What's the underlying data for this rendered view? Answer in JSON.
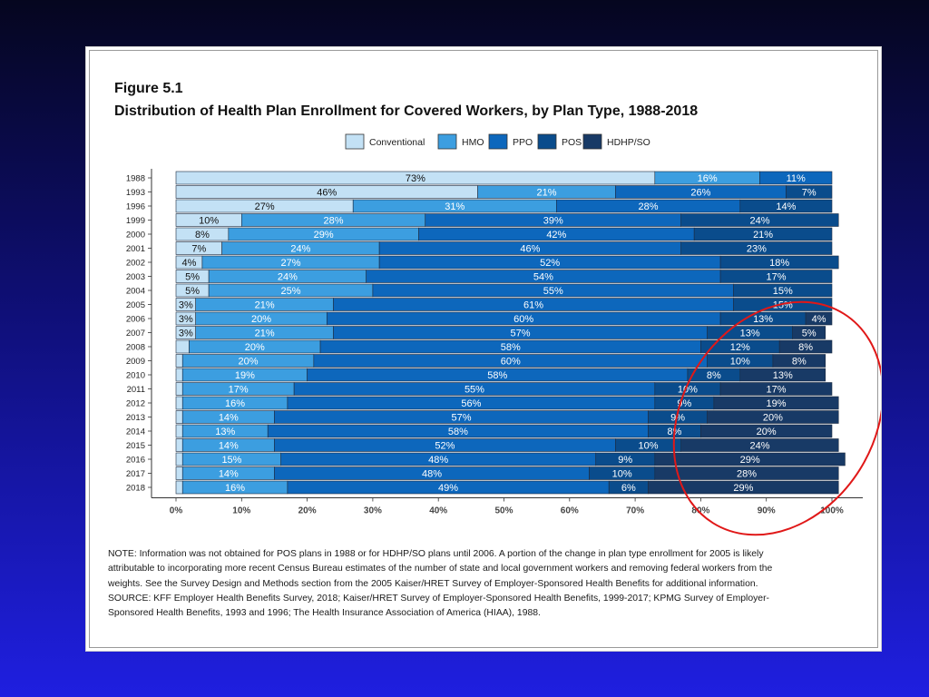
{
  "figure_label": "Figure 5.1",
  "figure_title": "Distribution of Health Plan Enrollment for Covered Workers, by Plan Type, 1988-2018",
  "note": "NOTE: Information was not obtained for POS plans in 1988 or for HDHP/SO plans until 2006. A portion of the change in plan type enrollment for 2005 is likely attributable to incorporating more recent Census Bureau estimates of the number of state and local government workers and removing federal workers from the weights. See the Survey Design and Methods section from the 2005 Kaiser/HRET Survey of Employer-Sponsored Health Benefits for additional information.",
  "source": "SOURCE: KFF Employer Health Benefits Survey, 2018; Kaiser/HRET Survey of Employer-Sponsored Health Benefits, 1999-2017; KPMG Survey of Employer-Sponsored Health Benefits, 1993 and 1996; The Health Insurance Association of America (HIAA), 1988.",
  "colors": {
    "Conventional": "#c3e1f5",
    "HMO": "#3c9ee0",
    "PPO": "#0d67bc",
    "POS": "#0a4c8c",
    "HDHP/SO": "#183a66",
    "annotation": "#e01818"
  },
  "annotation": {
    "shape": "ellipse",
    "description": "red ellipse around the POS and HDHP/SO segments, 2005-2018"
  },
  "chart_data": {
    "type": "bar",
    "orientation": "horizontal",
    "stacked": true,
    "categories": [
      "1988",
      "1993",
      "1996",
      "1999",
      "2000",
      "2001",
      "2002",
      "2003",
      "2004",
      "2005",
      "2006",
      "2007",
      "2008",
      "2009",
      "2010",
      "2011",
      "2012",
      "2013",
      "2014",
      "2015",
      "2016",
      "2017",
      "2018"
    ],
    "series": [
      {
        "name": "Conventional",
        "values": [
          73,
          46,
          27,
          10,
          8,
          7,
          4,
          5,
          5,
          3,
          3,
          3,
          2,
          1,
          1,
          1,
          1,
          1,
          1,
          1,
          1,
          1,
          1
        ],
        "labels": [
          "73%",
          "46%",
          "27%",
          "10%",
          "8%",
          "7%",
          "4%",
          "5%",
          "5%",
          "3%",
          "3%",
          "3%",
          "",
          "",
          "",
          "",
          "",
          "",
          "",
          "",
          "",
          "",
          ""
        ]
      },
      {
        "name": "HMO",
        "values": [
          16,
          21,
          31,
          28,
          29,
          24,
          27,
          24,
          25,
          21,
          20,
          21,
          20,
          20,
          19,
          17,
          16,
          14,
          13,
          14,
          15,
          14,
          16
        ],
        "labels": [
          "16%",
          "21%",
          "31%",
          "28%",
          "29%",
          "24%",
          "27%",
          "24%",
          "25%",
          "21%",
          "20%",
          "21%",
          "20%",
          "20%",
          "19%",
          "17%",
          "16%",
          "14%",
          "13%",
          "14%",
          "15%",
          "14%",
          "16%"
        ]
      },
      {
        "name": "PPO",
        "values": [
          11,
          26,
          28,
          39,
          42,
          46,
          52,
          54,
          55,
          61,
          60,
          57,
          58,
          60,
          58,
          55,
          56,
          57,
          58,
          52,
          48,
          48,
          49
        ],
        "labels": [
          "11%",
          "26%",
          "28%",
          "39%",
          "42%",
          "46%",
          "52%",
          "54%",
          "55%",
          "61%",
          "60%",
          "57%",
          "58%",
          "60%",
          "58%",
          "55%",
          "56%",
          "57%",
          "58%",
          "52%",
          "48%",
          "48%",
          "49%"
        ]
      },
      {
        "name": "POS",
        "values": [
          0,
          7,
          14,
          24,
          21,
          23,
          18,
          17,
          15,
          15,
          13,
          13,
          12,
          10,
          8,
          10,
          9,
          9,
          8,
          10,
          9,
          10,
          6
        ],
        "labels": [
          "",
          "7%",
          "14%",
          "24%",
          "21%",
          "23%",
          "18%",
          "17%",
          "15%",
          "15%",
          "13%",
          "13%",
          "12%",
          "10%",
          "8%",
          "10%",
          "9%",
          "9%",
          "8%",
          "10%",
          "9%",
          "10%",
          "6%"
        ]
      },
      {
        "name": "HDHP/SO",
        "values": [
          0,
          0,
          0,
          0,
          0,
          0,
          0,
          0,
          0,
          0,
          4,
          5,
          8,
          8,
          13,
          17,
          19,
          20,
          20,
          24,
          29,
          28,
          29
        ],
        "labels": [
          "",
          "",
          "",
          "",
          "",
          "",
          "",
          "",
          "",
          "",
          "4%",
          "5%",
          "8%",
          "8%",
          "13%",
          "17%",
          "19%",
          "20%",
          "20%",
          "24%",
          "29%",
          "28%",
          "29%"
        ]
      }
    ],
    "xlim": [
      0,
      100
    ],
    "xticks": [
      "0%",
      "10%",
      "20%",
      "30%",
      "40%",
      "50%",
      "60%",
      "70%",
      "80%",
      "90%",
      "100%"
    ],
    "legend_position": "top-center",
    "grid": false
  }
}
